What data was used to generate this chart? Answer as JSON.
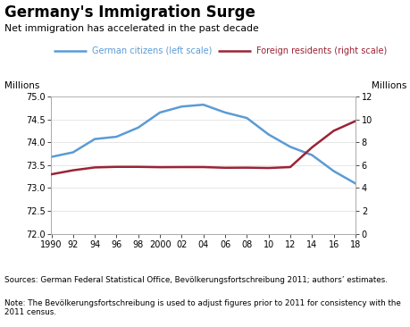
{
  "title": "Germany's Immigration Surge",
  "subtitle": "Net immigration has accelerated in the past decade",
  "source_text": "Sources: German Federal Statistical Office, Bevölkerungsfortschreibung 2011; authors’ estimates.",
  "note_text": "Note: The Bevölkerungsfortschreibung is used to adjust figures prior to 2011 for consistency with the 2011 census.",
  "legend_blue": "German citizens (left scale)",
  "legend_red": "Foreign residents (right scale)",
  "ylabel_left": "Millions",
  "ylabel_right": "Millions",
  "blue_color": "#5b9bd5",
  "red_color": "#9b2335",
  "years": [
    1990,
    1992,
    1994,
    1996,
    1998,
    2000,
    2002,
    2004,
    2006,
    2008,
    2010,
    2012,
    2014,
    2016,
    2018
  ],
  "german_citizens": [
    73.68,
    73.78,
    74.07,
    74.12,
    74.32,
    74.65,
    74.78,
    74.82,
    74.65,
    74.53,
    74.17,
    73.9,
    73.72,
    73.37,
    73.1
  ],
  "foreign_residents": [
    5.2,
    5.55,
    5.8,
    5.85,
    5.85,
    5.82,
    5.83,
    5.83,
    5.77,
    5.78,
    5.75,
    5.83,
    7.55,
    9.0,
    9.85
  ],
  "xlim": [
    1990,
    2018
  ],
  "ylim_left": [
    72.0,
    75.0
  ],
  "ylim_right": [
    0,
    12
  ],
  "xticks": [
    1990,
    1992,
    1994,
    1996,
    1998,
    2000,
    2002,
    2004,
    2006,
    2008,
    2010,
    2012,
    2014,
    2016,
    2018
  ],
  "xtick_labels": [
    "1990",
    "92",
    "94",
    "96",
    "98",
    "2000",
    "02",
    "04",
    "06",
    "08",
    "10",
    "12",
    "14",
    "16",
    "18"
  ],
  "yticks_left": [
    72.0,
    72.5,
    73.0,
    73.5,
    74.0,
    74.5,
    75.0
  ],
  "yticks_right": [
    0,
    2,
    4,
    6,
    8,
    10,
    12
  ],
  "fig_bg": "#ffffff",
  "plot_bg": "#ffffff"
}
